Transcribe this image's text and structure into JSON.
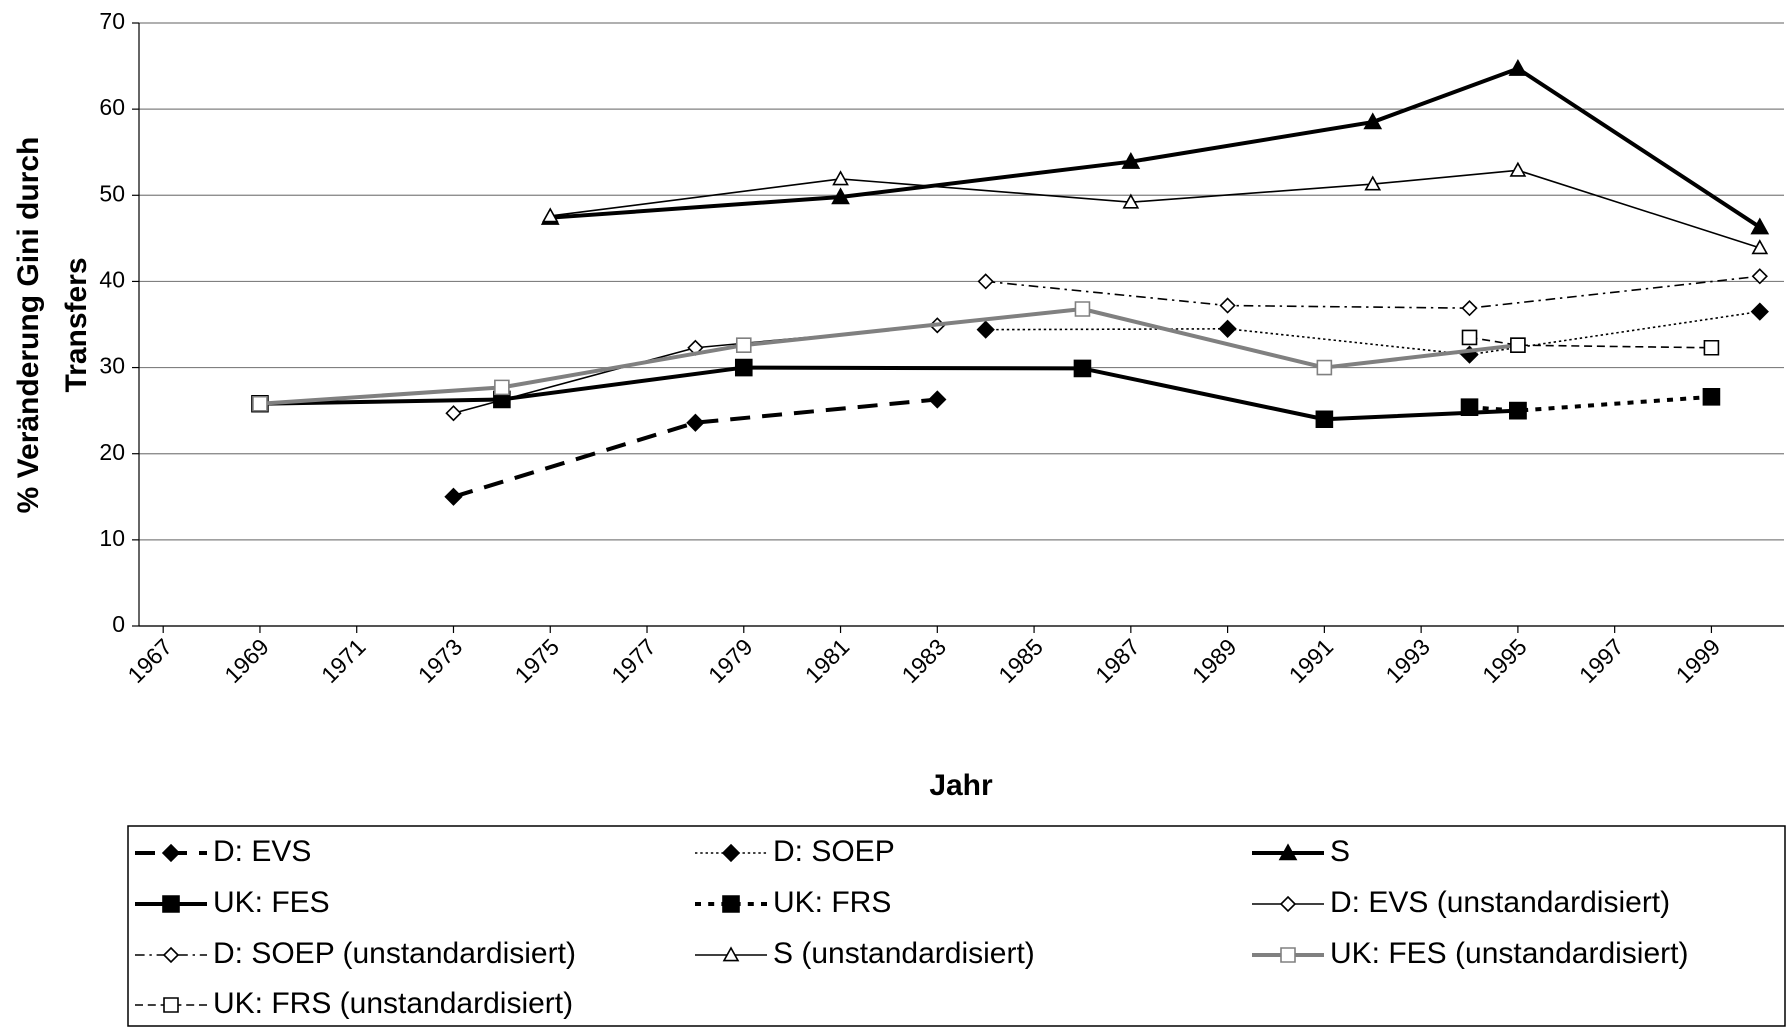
{
  "chart_data": {
    "type": "line",
    "xlabel": "Jahr",
    "ylabel": [
      "% Veränderung Gini durch",
      "Transfers"
    ],
    "xlim": [
      1966.5,
      2000.5
    ],
    "xticks": [
      1967,
      1969,
      1971,
      1973,
      1975,
      1977,
      1979,
      1981,
      1983,
      1985,
      1987,
      1989,
      1991,
      1993,
      1995,
      1997,
      1999
    ],
    "ylim": [
      0,
      70
    ],
    "yticks": [
      0,
      10,
      20,
      30,
      40,
      50,
      60,
      70
    ],
    "grid": true,
    "legend": "bottom",
    "series": [
      {
        "name": "D: EVS",
        "color": "#000000",
        "line_style": "dash",
        "weight": "thick",
        "marker": "diamond",
        "x": [
          1973,
          1978,
          1983
        ],
        "values": [
          15.0,
          23.6,
          26.3
        ]
      },
      {
        "name": "D: SOEP",
        "color": "#000000",
        "line_style": "dot",
        "weight": "thin",
        "marker": "diamond",
        "x": [
          1984,
          1989,
          1994,
          2000
        ],
        "values": [
          34.4,
          34.5,
          31.5,
          36.5
        ]
      },
      {
        "name": "S",
        "color": "#000000",
        "line_style": "solid",
        "weight": "thick",
        "marker": "triangle",
        "x": [
          1975,
          1981,
          1987,
          1992,
          1995,
          2000
        ],
        "values": [
          47.4,
          49.8,
          53.9,
          58.5,
          64.7,
          46.3
        ]
      },
      {
        "name": "UK: FES",
        "color": "#000000",
        "line_style": "solid",
        "weight": "thick",
        "marker": "square",
        "x": [
          1969,
          1974,
          1979,
          1986,
          1991,
          1995
        ],
        "values": [
          25.8,
          26.3,
          30.0,
          29.9,
          24.0,
          25.0
        ]
      },
      {
        "name": "UK: FRS",
        "color": "#000000",
        "line_style": "dot",
        "weight": "thick",
        "marker": "square",
        "x": [
          1994,
          1995,
          1999
        ],
        "values": [
          25.4,
          25.0,
          26.6
        ]
      },
      {
        "name": "D: EVS (unstandardisiert)",
        "color": "#000000",
        "line_style": "solid",
        "weight": "thin",
        "marker": "diamond-open",
        "x": [
          1973,
          1978,
          1983
        ],
        "values": [
          24.7,
          32.3,
          34.9
        ]
      },
      {
        "name": "D: SOEP (unstandardisiert)",
        "color": "#000000",
        "line_style": "dashdot",
        "weight": "thin",
        "marker": "diamond-open",
        "x": [
          1984,
          1989,
          1994,
          2000
        ],
        "values": [
          40.0,
          37.2,
          36.9,
          40.6
        ]
      },
      {
        "name": "S (unstandardisiert)",
        "color": "#000000",
        "line_style": "solid",
        "weight": "thin",
        "marker": "triangle-open",
        "x": [
          1975,
          1981,
          1987,
          1992,
          1995,
          2000
        ],
        "values": [
          47.6,
          51.9,
          49.2,
          51.3,
          52.9,
          43.9
        ]
      },
      {
        "name": "UK: FES (unstandardisiert)",
        "color": "#808080",
        "line_style": "solid",
        "weight": "thick",
        "marker": "square-open",
        "x": [
          1969,
          1974,
          1979,
          1986,
          1991,
          1995
        ],
        "values": [
          25.8,
          27.7,
          32.6,
          36.8,
          30.0,
          32.6
        ]
      },
      {
        "name": "UK: FRS (unstandardisiert)",
        "color": "#000000",
        "line_style": "dash",
        "weight": "thin",
        "marker": "square-open",
        "x": [
          1994,
          1995,
          1999
        ],
        "values": [
          33.5,
          32.6,
          32.3
        ]
      }
    ]
  }
}
